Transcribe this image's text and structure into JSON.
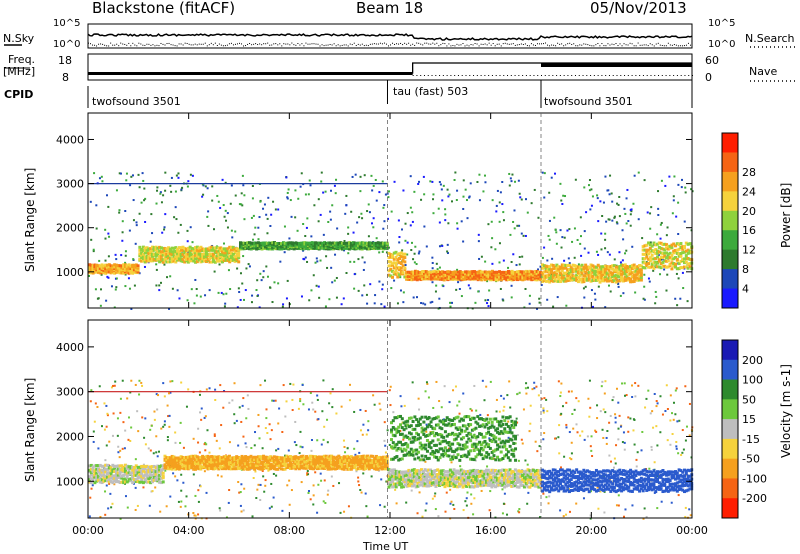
{
  "header": {
    "radar": "Blackstone (fitACF)",
    "beam": "Beam 18",
    "date": "05/Nov/2013"
  },
  "top_panels": {
    "nsky_label": "N.Sky",
    "nsearch_label": "N.Search",
    "noise_tick_hi": "10^5",
    "noise_tick_lo": "10^0",
    "freq_label_1": "Freq.",
    "freq_label_2": "[MHz]",
    "freq_ticks": [
      "18",
      "8"
    ],
    "nave_label": "Nave",
    "nave_ticks": [
      "60",
      "0"
    ],
    "cpid_label": "CPID",
    "cpid_segments": [
      "twofsound 3501",
      "tau (fast) 503",
      "twofsound 3501"
    ]
  },
  "colors": {
    "power": [
      "#1a1aff",
      "#1c47b8",
      "#2e7a2e",
      "#3caa3c",
      "#8fd23c",
      "#f5d23c",
      "#f5a01e",
      "#f56414",
      "#ff1e00"
    ],
    "velocity": [
      "#1a1ab4",
      "#2a5acd",
      "#2e8a2e",
      "#6cc83c",
      "#bebebe",
      "#f5d23c",
      "#f5a01e",
      "#f56414",
      "#ff1e00"
    ]
  },
  "chart_data": [
    {
      "type": "heatmap",
      "title": "Power",
      "xlabel": "Time UT",
      "ylabel": "Slant Range [km]",
      "colorbar_label": "Power [dB]",
      "x_ticks": [
        "00:00",
        "04:00",
        "08:00",
        "12:00",
        "16:00",
        "20:00",
        "00:00"
      ],
      "y_ticks": [
        1000,
        2000,
        3000,
        4000
      ],
      "xlim_hours": [
        0,
        24
      ],
      "ylim_km": [
        180,
        4600
      ],
      "colorbar_ticks": [
        4,
        8,
        12,
        16,
        20,
        24,
        28
      ],
      "mode_changes_hours": [
        11.9,
        18.0
      ],
      "echo_bands": [
        {
          "t_start": 0.0,
          "t_end": 2.0,
          "range_start_km": 1000,
          "range_end_km": 1200,
          "power_db": 28
        },
        {
          "t_start": 2.0,
          "t_end": 6.0,
          "range_start_km": 1250,
          "range_end_km": 1600,
          "power_db": 24
        },
        {
          "t_start": 6.0,
          "t_end": 11.9,
          "range_start_km": 1550,
          "range_end_km": 1700,
          "power_db": 16
        },
        {
          "t_start": 11.9,
          "t_end": 12.6,
          "range_start_km": 900,
          "range_end_km": 1500,
          "power_db": 26
        },
        {
          "t_start": 12.6,
          "t_end": 18.0,
          "range_start_km": 850,
          "range_end_km": 1050,
          "power_db": 30
        },
        {
          "t_start": 18.0,
          "t_end": 22.0,
          "range_start_km": 800,
          "range_end_km": 1200,
          "power_db": 26
        },
        {
          "t_start": 22.0,
          "t_end": 24.0,
          "range_start_km": 1100,
          "range_end_km": 1700,
          "power_db": 24
        }
      ]
    },
    {
      "type": "heatmap",
      "title": "Velocity",
      "xlabel": "Time UT",
      "ylabel": "Slant Range [km]",
      "colorbar_label": "Velocity [m s-1]",
      "x_ticks": [
        "00:00",
        "04:00",
        "08:00",
        "12:00",
        "16:00",
        "20:00",
        "00:00"
      ],
      "y_ticks": [
        1000,
        2000,
        3000,
        4000
      ],
      "xlim_hours": [
        0,
        24
      ],
      "ylim_km": [
        180,
        4600
      ],
      "colorbar_ticks": [
        200,
        100,
        50,
        15,
        -15,
        -50,
        -100,
        -200
      ],
      "mode_changes_hours": [
        11.9,
        18.0
      ],
      "echo_bands": [
        {
          "t_start": 0.0,
          "t_end": 3.0,
          "range_start_km": 1000,
          "range_end_km": 1400,
          "velocity": 0
        },
        {
          "t_start": 3.0,
          "t_end": 11.9,
          "range_start_km": 1300,
          "range_end_km": 1600,
          "velocity": -60
        },
        {
          "t_start": 11.9,
          "t_end": 18.0,
          "range_start_km": 900,
          "range_end_km": 1300,
          "velocity": 0
        },
        {
          "t_start": 12.0,
          "t_end": 17.0,
          "range_start_km": 1500,
          "range_end_km": 2500,
          "velocity": 60
        },
        {
          "t_start": 18.0,
          "t_end": 24.0,
          "range_start_km": 800,
          "range_end_km": 1300,
          "velocity": 150
        }
      ]
    }
  ]
}
